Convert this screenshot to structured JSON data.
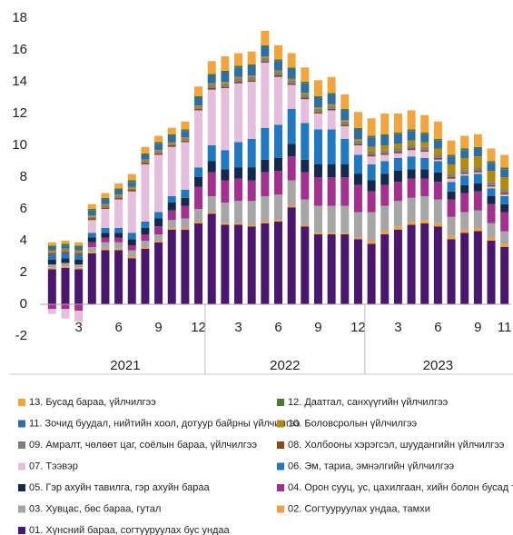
{
  "chart_data": {
    "type": "stacked_bar",
    "categories": [
      null,
      null,
      "3",
      null,
      null,
      "6",
      null,
      null,
      "9",
      null,
      null,
      "12",
      null,
      null,
      "3",
      null,
      null,
      "6",
      null,
      null,
      "9",
      null,
      null,
      "12",
      null,
      null,
      "3",
      null,
      null,
      "6",
      null,
      null,
      "9",
      null,
      "11"
    ],
    "years": [
      "2021",
      "2022",
      "2023"
    ],
    "ylim": [
      -2,
      18
    ],
    "yticks": [
      -2,
      0,
      2,
      4,
      6,
      8,
      10,
      12,
      14,
      16,
      18
    ],
    "grid": false,
    "series": [
      {
        "name": "01. Хүнсний бараа, согтууруулах бус ундаа",
        "color": "#4b176e",
        "values": [
          2.2,
          2.3,
          2.2,
          3.2,
          3.4,
          3.4,
          2.9,
          3.5,
          3.9,
          4.7,
          4.7,
          5.1,
          5.7,
          5.0,
          5.0,
          4.9,
          5.1,
          5.2,
          6.1,
          4.9,
          4.4,
          4.4,
          4.4,
          4.1,
          3.8,
          4.4,
          4.7,
          5.0,
          5.1,
          4.9,
          4.1,
          4.5,
          4.6,
          4.0,
          3.6
        ]
      },
      {
        "name": "02. Согтууруулах ундаа, тамхи",
        "color": "#f0a03a",
        "values": [
          0.1,
          0.1,
          0.1,
          0.1,
          0.1,
          0.1,
          0.1,
          0.1,
          0.1,
          0.1,
          0.1,
          0.1,
          0.1,
          0.1,
          0.1,
          0.1,
          0.1,
          0.1,
          0.1,
          0.1,
          0.1,
          0.1,
          0.1,
          0.1,
          0.2,
          0.2,
          0.2,
          0.2,
          0.2,
          0.2,
          0.2,
          0.2,
          0.2,
          0.2,
          0.2
        ]
      },
      {
        "name": "03. Хувцас, бөс бараа, гутал",
        "color": "#a6a6a6",
        "values": [
          0.2,
          0.2,
          0.2,
          0.3,
          0.4,
          0.4,
          0.4,
          0.4,
          0.4,
          0.5,
          0.6,
          0.8,
          1.0,
          1.3,
          1.4,
          1.5,
          1.6,
          1.6,
          1.6,
          1.6,
          1.7,
          1.7,
          1.7,
          1.6,
          1.8,
          1.6,
          1.6,
          1.5,
          1.5,
          1.5,
          1.2,
          1.1,
          1.1,
          0.9,
          0.8
        ]
      },
      {
        "name": "04. Орон сууц, ус, цахилгаан, хийн болон бусад түлш",
        "color": "#a3308f",
        "values": [
          -0.3,
          -0.3,
          -0.4,
          0.3,
          0.3,
          0.3,
          0.3,
          0.4,
          0.5,
          0.6,
          0.8,
          1.4,
          1.5,
          1.4,
          1.4,
          1.3,
          1.5,
          1.5,
          1.5,
          1.7,
          1.8,
          1.8,
          1.8,
          1.7,
          1.3,
          1.3,
          1.2,
          1.2,
          1.1,
          1.1,
          1.1,
          1.2,
          1.2,
          1.2,
          1.2
        ]
      },
      {
        "name": "05. Гэр ахуйн тавилга, гэр ахуйн бараа",
        "color": "#15294a",
        "values": [
          0.3,
          0.3,
          0.3,
          0.3,
          0.3,
          0.3,
          0.4,
          0.4,
          0.5,
          0.5,
          0.5,
          0.6,
          0.7,
          0.7,
          0.7,
          0.8,
          0.8,
          0.8,
          0.8,
          0.8,
          0.8,
          0.8,
          0.8,
          0.7,
          0.7,
          0.7,
          0.7,
          0.6,
          0.6,
          0.6,
          0.5,
          0.5,
          0.5,
          0.5,
          0.5
        ]
      },
      {
        "name": "06. Эм, тариа, эмнэлгийн үйлчилгээ",
        "color": "#1f78c1",
        "values": [
          0.3,
          0.3,
          0.3,
          0.3,
          0.3,
          0.3,
          0.4,
          0.4,
          0.4,
          0.4,
          0.5,
          0.6,
          1.0,
          1.2,
          1.6,
          1.8,
          2.0,
          2.1,
          2.2,
          2.3,
          2.2,
          2.2,
          1.6,
          1.2,
          1.0,
          0.8,
          0.8,
          0.8,
          0.7,
          0.7,
          0.6,
          0.6,
          0.6,
          0.5,
          0.5
        ]
      },
      {
        "name": "07. Тээвэр",
        "color": "#e6bedd",
        "values": [
          -0.3,
          -0.6,
          -0.7,
          0.8,
          1.2,
          1.8,
          2.6,
          3.6,
          3.6,
          3.1,
          3.0,
          3.6,
          3.5,
          3.9,
          3.7,
          3.6,
          4.1,
          3.0,
          1.5,
          1.5,
          1.0,
          1.2,
          0.8,
          0.6,
          0.5,
          0.4,
          0.3,
          0.4,
          0.4,
          0.1,
          0.2,
          0.1,
          0.1,
          0.1,
          0.1
        ]
      },
      {
        "name": "08. Холбооны хэрэгсэл, шуудангийн үйлчилгээ",
        "color": "#8c4a1c",
        "values": [
          0.1,
          0.1,
          0.1,
          0.1,
          0.1,
          0.1,
          0.1,
          0.1,
          0.1,
          0.1,
          0.1,
          0.1,
          0.1,
          0.1,
          0.1,
          0.1,
          0.1,
          0.1,
          0.1,
          0.1,
          0.1,
          0.1,
          0.1,
          0.1,
          0.1,
          0.1,
          0.1,
          0.1,
          0.1,
          0.1,
          0.1,
          0.1,
          0.1,
          0.1,
          0.1
        ]
      },
      {
        "name": "09. Амралт, чөлөөт цаг, соёлын бараа, үйлчилгээ",
        "color": "#7f7f7f",
        "values": [
          0.1,
          0.1,
          0.1,
          0.1,
          0.1,
          0.1,
          0.1,
          0.1,
          0.1,
          0.1,
          0.1,
          0.1,
          0.2,
          0.2,
          0.2,
          0.2,
          0.2,
          0.2,
          0.2,
          0.2,
          0.2,
          0.2,
          0.2,
          0.2,
          0.2,
          0.2,
          0.2,
          0.2,
          0.2,
          0.2,
          0.2,
          0.2,
          0.2,
          0.2,
          0.2
        ]
      },
      {
        "name": "10. Боловсролын үйлчилгээ",
        "color": "#b38a10",
        "values": [
          0.1,
          0.1,
          0.1,
          0.1,
          0.1,
          0.1,
          0.1,
          0.1,
          0.1,
          0.1,
          0.1,
          0.1,
          0.1,
          0.1,
          0.1,
          0.1,
          0.1,
          0.1,
          0.1,
          0.1,
          0.1,
          0.1,
          0.1,
          0.1,
          0.3,
          0.3,
          0.3,
          0.3,
          0.3,
          0.4,
          0.6,
          0.7,
          0.7,
          0.7,
          0.8
        ]
      },
      {
        "name": "11. Зочид буудал, нийтийн хоол, дотуур байрны үйлчилгээ",
        "color": "#2f6ea5",
        "values": [
          0.2,
          0.2,
          0.2,
          0.3,
          0.3,
          0.3,
          0.3,
          0.3,
          0.4,
          0.4,
          0.4,
          0.5,
          0.5,
          0.6,
          0.6,
          0.6,
          0.6,
          0.6,
          0.6,
          0.6,
          0.6,
          0.6,
          0.6,
          0.6,
          0.6,
          0.6,
          0.6,
          0.6,
          0.5,
          0.5,
          0.5,
          0.5,
          0.5,
          0.5,
          0.5
        ]
      },
      {
        "name": "12. Даатгал, санхүүгийн үйлчилгээ",
        "color": "#4d7a2c",
        "values": [
          0.1,
          0.1,
          0.1,
          0.1,
          0.1,
          0.1,
          0.1,
          0.1,
          0.1,
          0.1,
          0.1,
          0.1,
          0.1,
          0.1,
          0.1,
          0.1,
          0.1,
          0.1,
          0.1,
          0.1,
          0.1,
          0.1,
          0.1,
          0.1,
          0.1,
          0.1,
          0.1,
          0.1,
          0.1,
          0.1,
          0.1,
          0.1,
          0.1,
          0.1,
          0.1
        ]
      },
      {
        "name": "13. Бусад бараа, үйлчилгээ",
        "color": "#f2a53c",
        "values": [
          0.2,
          0.2,
          0.2,
          0.3,
          0.3,
          0.3,
          0.4,
          0.4,
          0.4,
          0.4,
          0.5,
          0.6,
          0.8,
          0.9,
          0.8,
          0.8,
          0.9,
          0.9,
          0.9,
          0.9,
          1.0,
          1.0,
          0.9,
          1.0,
          1.1,
          1.3,
          1.2,
          1.2,
          1.1,
          1.1,
          0.9,
          0.8,
          0.8,
          0.8,
          0.8
        ]
      }
    ]
  }
}
